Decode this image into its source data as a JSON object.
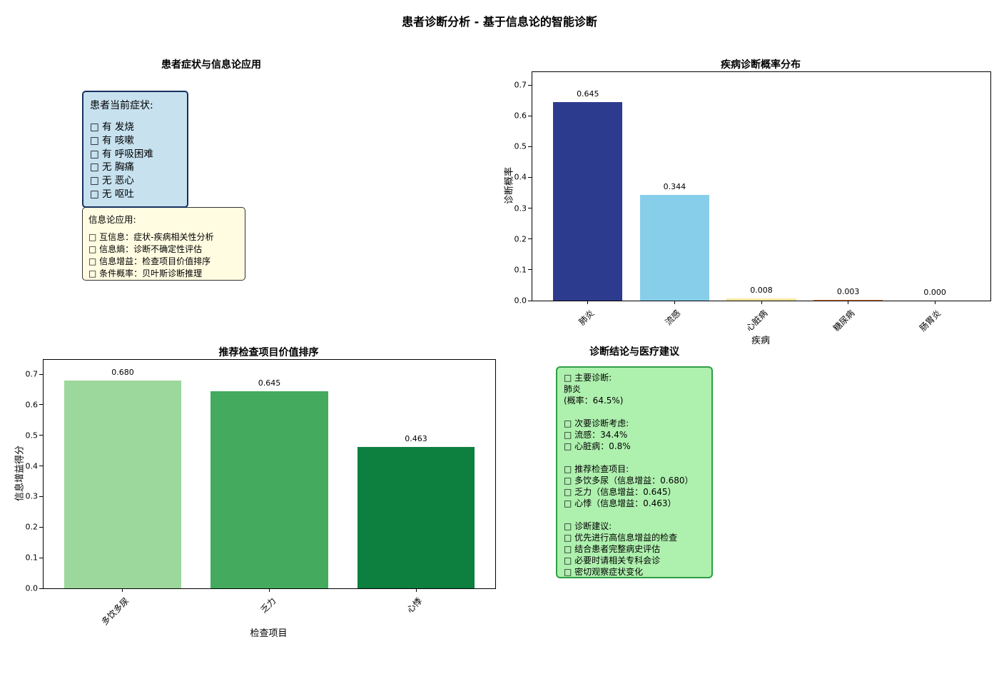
{
  "figure_title": "患者诊断分析 - 基于信息论的智能诊断",
  "panels": {
    "symptoms": {
      "title": "患者症状与信息论应用",
      "symptom_box": {
        "header": "患者当前症状:",
        "items": [
          "□ 有 发烧",
          "□ 有 咳嗽",
          "□ 有 呼吸困难",
          "□ 无 胸痛",
          "□ 无 恶心",
          "□ 无 呕吐"
        ]
      },
      "info_box": {
        "header": "信息论应用:",
        "items": [
          "□ 互信息：症状-疾病相关性分析",
          "□ 信息熵：诊断不确定性评估",
          "□ 信息增益：检查项目价值排序",
          "□ 条件概率：贝叶斯诊断推理"
        ]
      }
    },
    "conclusion": {
      "title": "诊断结论与医疗建议",
      "lines": [
        "□ 主要诊断:",
        "肺炎",
        "(概率：64.5%)",
        "",
        "□ 次要诊断考虑:",
        "□ 流感：34.4%",
        "□ 心脏病：0.8%",
        "",
        "□ 推荐检查项目:",
        "□ 多饮多尿（信息增益：0.680）",
        "□ 乏力（信息增益：0.645）",
        "□ 心悸（信息增益：0.463）",
        "",
        "□ 诊断建议:",
        "□ 优先进行高信息增益的检查",
        "□ 结合患者完整病史评估",
        "□ 必要时请相关专科会诊",
        "□ 密切观察症状变化"
      ]
    }
  },
  "chart_data": [
    {
      "type": "bar",
      "title": "疾病诊断概率分布",
      "categories": [
        "肺炎",
        "流感",
        "心脏病",
        "糖尿病",
        "肠胃炎"
      ],
      "values": [
        0.645,
        0.344,
        0.008,
        0.003,
        0.0
      ],
      "value_labels": [
        "0.645",
        "0.344",
        "0.008",
        "0.003",
        "0.000"
      ],
      "bar_colors": [
        "#2d3b8f",
        "#87ceeb",
        "#f3e6a0",
        "#e8743b",
        "#c9c9c9"
      ],
      "xlabel": "疾病",
      "ylabel": "诊断概率",
      "ylim": [
        0,
        0.7
      ],
      "yticks": [
        0,
        0.1,
        0.2,
        0.3,
        0.4,
        0.5,
        0.6,
        0.7
      ],
      "grid": false,
      "legend": false
    },
    {
      "type": "bar",
      "title": "推荐检查项目价值排序",
      "categories": [
        "多饮多尿",
        "乏力",
        "心悸"
      ],
      "values": [
        0.68,
        0.645,
        0.463
      ],
      "value_labels": [
        "0.680",
        "0.645",
        "0.463"
      ],
      "bar_colors": [
        "#9cd79c",
        "#43aa5e",
        "#0d8040"
      ],
      "xlabel": "检查项目",
      "ylabel": "信息增益得分",
      "ylim": [
        0,
        0.7
      ],
      "yticks": [
        0,
        0.1,
        0.2,
        0.3,
        0.4,
        0.5,
        0.6,
        0.7
      ],
      "grid": false,
      "legend": false
    }
  ]
}
